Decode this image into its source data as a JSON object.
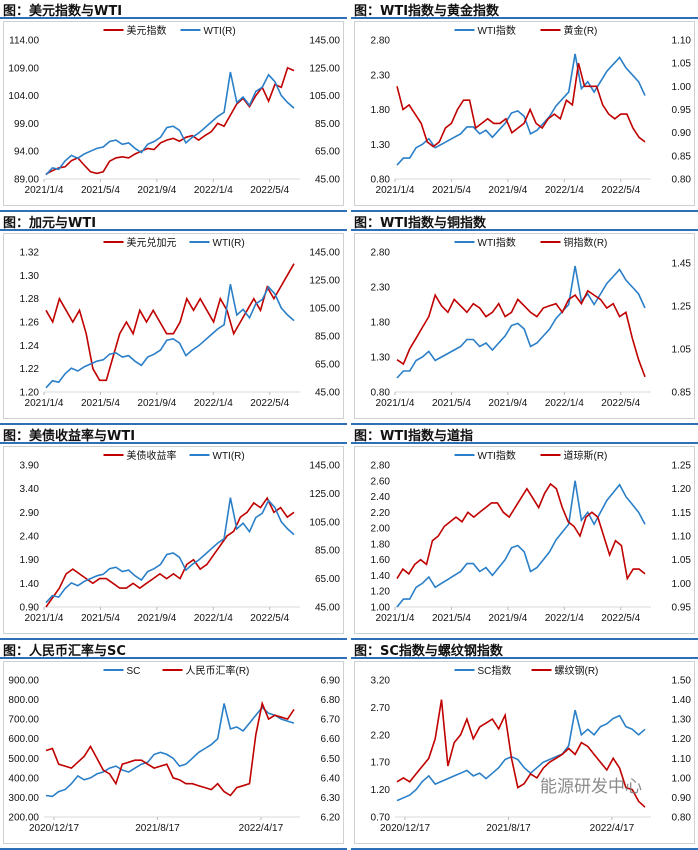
{
  "watermark": "能源研发中心",
  "colors": {
    "red": "#c00000",
    "blue": "#2a7fc8"
  },
  "chart_data": [
    {
      "type": "line",
      "title": "图：美元指数与WTI",
      "legend": [
        "美元指数",
        "WTI(R)"
      ],
      "left_ticks": [
        "89.00",
        "94.00",
        "99.00",
        "104.00",
        "109.00",
        "114.00"
      ],
      "ylim": [
        89,
        114
      ],
      "right_ticks": [
        "45.00",
        "65.00",
        "85.00",
        "105.00",
        "125.00",
        "145.00"
      ],
      "y2lim": [
        45,
        145
      ],
      "x_ticks": [
        "2021/1/4",
        "2021/5/4",
        "2021/9/4",
        "2022/1/4",
        "2022/5/4"
      ],
      "series": [
        {
          "name": "美元指数",
          "axis": "left",
          "color": "red",
          "values": [
            89.9,
            90.5,
            91.0,
            91.2,
            92.3,
            92.8,
            91.5,
            90.3,
            90.0,
            90.3,
            92.2,
            92.8,
            93.0,
            92.8,
            93.5,
            94.0,
            94.5,
            94.3,
            95.5,
            96.0,
            96.3,
            95.8,
            96.5,
            96.8,
            96.0,
            96.8,
            97.5,
            99.0,
            98.5,
            100.5,
            102.5,
            103.5,
            102.0,
            104.0,
            105.5,
            103.0,
            106.0,
            105.5,
            109.0,
            108.5
          ]
        },
        {
          "name": "WTI(R)",
          "axis": "right",
          "color": "blue",
          "values": [
            48,
            53,
            52,
            58,
            62,
            60,
            63,
            65,
            67,
            68,
            72,
            73,
            70,
            71,
            67,
            64,
            70,
            72,
            75,
            82,
            83,
            80,
            71,
            75,
            78,
            82,
            86,
            90,
            93,
            122,
            100,
            104,
            98,
            108,
            111,
            120,
            115,
            105,
            100,
            96
          ]
        }
      ]
    },
    {
      "type": "line",
      "title": "图：WTI指数与黄金指数",
      "legend": [
        "WTI指数",
        "黄金(R)"
      ],
      "left_ticks": [
        "0.80",
        "1.30",
        "1.80",
        "2.30",
        "2.80"
      ],
      "ylim": [
        0.8,
        2.8
      ],
      "right_ticks": [
        "0.80",
        "0.85",
        "0.90",
        "0.95",
        "1.00",
        "1.05",
        "1.10"
      ],
      "y2lim": [
        0.8,
        1.1
      ],
      "x_ticks": [
        "2021/1/4",
        "2021/5/4",
        "2021/9/4",
        "2022/1/4",
        "2022/5/4"
      ],
      "series": [
        {
          "name": "WTI指数",
          "axis": "left",
          "color": "blue",
          "values": [
            1.0,
            1.1,
            1.1,
            1.25,
            1.3,
            1.38,
            1.25,
            1.3,
            1.35,
            1.4,
            1.45,
            1.55,
            1.55,
            1.45,
            1.5,
            1.4,
            1.5,
            1.6,
            1.75,
            1.78,
            1.7,
            1.45,
            1.5,
            1.6,
            1.7,
            1.85,
            1.95,
            2.05,
            2.6,
            2.1,
            2.2,
            2.05,
            2.2,
            2.35,
            2.45,
            2.55,
            2.4,
            2.3,
            2.2,
            2.0
          ]
        },
        {
          "name": "黄金(R)",
          "axis": "right",
          "color": "red",
          "values": [
            1.0,
            0.95,
            0.96,
            0.94,
            0.92,
            0.88,
            0.87,
            0.88,
            0.91,
            0.92,
            0.95,
            0.97,
            0.97,
            0.91,
            0.92,
            0.93,
            0.92,
            0.92,
            0.93,
            0.9,
            0.91,
            0.92,
            0.95,
            0.92,
            0.91,
            0.93,
            0.94,
            0.93,
            0.97,
            0.96,
            1.05,
            1.0,
            1.0,
            1.0,
            0.96,
            0.94,
            0.93,
            0.94,
            0.94,
            0.91,
            0.89,
            0.88
          ]
        }
      ]
    },
    {
      "type": "line",
      "title": "图：加元与WTI",
      "legend": [
        "美元兑加元",
        "WTI(R)"
      ],
      "left_ticks": [
        "1.20",
        "1.22",
        "1.24",
        "1.26",
        "1.28",
        "1.30",
        "1.32"
      ],
      "ylim": [
        1.2,
        1.32
      ],
      "right_ticks": [
        "45.00",
        "65.00",
        "85.00",
        "105.00",
        "125.00",
        "145.00"
      ],
      "y2lim": [
        45,
        145
      ],
      "x_ticks": [
        "2021/1/4",
        "2021/5/4",
        "2021/9/4",
        "2022/1/4",
        "2022/5/4"
      ],
      "series": [
        {
          "name": "美元兑加元",
          "axis": "left",
          "color": "red",
          "values": [
            1.27,
            1.26,
            1.28,
            1.27,
            1.26,
            1.27,
            1.25,
            1.22,
            1.21,
            1.21,
            1.23,
            1.25,
            1.26,
            1.25,
            1.27,
            1.26,
            1.27,
            1.26,
            1.25,
            1.25,
            1.26,
            1.28,
            1.27,
            1.28,
            1.27,
            1.26,
            1.28,
            1.27,
            1.25,
            1.26,
            1.27,
            1.28,
            1.27,
            1.29,
            1.28,
            1.29,
            1.3,
            1.31
          ]
        },
        {
          "name": "WTI(R)",
          "axis": "right",
          "color": "blue",
          "values": [
            48,
            53,
            52,
            58,
            62,
            60,
            63,
            65,
            67,
            68,
            72,
            73,
            70,
            71,
            67,
            64,
            70,
            72,
            75,
            82,
            83,
            80,
            71,
            75,
            78,
            82,
            86,
            90,
            93,
            122,
            100,
            104,
            98,
            108,
            111,
            120,
            115,
            105,
            100,
            96
          ]
        }
      ]
    },
    {
      "type": "line",
      "title": "图：WTI指数与铜指数",
      "legend": [
        "WTI指数",
        "铜指数(R)"
      ],
      "left_ticks": [
        "0.80",
        "1.30",
        "1.80",
        "2.30",
        "2.80"
      ],
      "ylim": [
        0.8,
        2.8
      ],
      "right_ticks": [
        "0.85",
        "1.05",
        "1.25",
        "1.45"
      ],
      "y2lim": [
        0.85,
        1.5
      ],
      "x_ticks": [
        "2021/1/4",
        "2021/5/4",
        "2021/9/4",
        "2022/1/4",
        "2022/5/4"
      ],
      "series": [
        {
          "name": "WTI指数",
          "axis": "left",
          "color": "blue",
          "values": [
            1.0,
            1.1,
            1.1,
            1.25,
            1.3,
            1.38,
            1.25,
            1.3,
            1.35,
            1.4,
            1.45,
            1.55,
            1.55,
            1.45,
            1.5,
            1.4,
            1.5,
            1.6,
            1.75,
            1.78,
            1.7,
            1.45,
            1.5,
            1.6,
            1.7,
            1.85,
            1.95,
            2.05,
            2.6,
            2.1,
            2.2,
            2.05,
            2.2,
            2.35,
            2.45,
            2.55,
            2.4,
            2.3,
            2.2,
            2.0
          ]
        },
        {
          "name": "铜指数(R)",
          "axis": "right",
          "color": "red",
          "values": [
            1.0,
            0.98,
            1.05,
            1.1,
            1.15,
            1.2,
            1.3,
            1.25,
            1.22,
            1.28,
            1.25,
            1.22,
            1.26,
            1.24,
            1.2,
            1.22,
            1.26,
            1.2,
            1.22,
            1.28,
            1.25,
            1.22,
            1.2,
            1.24,
            1.25,
            1.26,
            1.22,
            1.28,
            1.3,
            1.26,
            1.32,
            1.3,
            1.28,
            1.24,
            1.26,
            1.2,
            1.22,
            1.1,
            1.0,
            0.92
          ]
        }
      ]
    },
    {
      "type": "line",
      "title": "图：美债收益率与WTI",
      "legend": [
        "美债收益率",
        "WTI(R)"
      ],
      "left_ticks": [
        "0.90",
        "1.40",
        "1.90",
        "2.40",
        "2.90",
        "3.40",
        "3.90"
      ],
      "ylim": [
        0.9,
        3.9
      ],
      "right_ticks": [
        "45.00",
        "65.00",
        "85.00",
        "105.00",
        "125.00",
        "145.00"
      ],
      "y2lim": [
        45,
        145
      ],
      "x_ticks": [
        "2021/1/4",
        "2021/5/4",
        "2021/9/4",
        "2022/1/4",
        "2022/5/4"
      ],
      "series": [
        {
          "name": "美债收益率",
          "axis": "left",
          "color": "red",
          "values": [
            0.9,
            1.1,
            1.3,
            1.6,
            1.7,
            1.6,
            1.5,
            1.4,
            1.5,
            1.5,
            1.4,
            1.3,
            1.3,
            1.4,
            1.3,
            1.4,
            1.5,
            1.6,
            1.5,
            1.6,
            1.5,
            1.8,
            1.9,
            1.7,
            1.8,
            2.0,
            2.2,
            2.4,
            2.5,
            2.8,
            2.9,
            3.1,
            3.0,
            3.2,
            2.9,
            3.0,
            2.8,
            2.9
          ]
        },
        {
          "name": "WTI(R)",
          "axis": "right",
          "color": "blue",
          "values": [
            48,
            53,
            52,
            58,
            62,
            60,
            63,
            65,
            67,
            68,
            72,
            73,
            70,
            71,
            67,
            64,
            70,
            72,
            75,
            82,
            83,
            80,
            71,
            75,
            78,
            82,
            86,
            90,
            93,
            122,
            100,
            104,
            98,
            108,
            111,
            120,
            115,
            105,
            100,
            96
          ]
        }
      ]
    },
    {
      "type": "line",
      "title": "图：WTI指数与道指",
      "legend": [
        "WTI指数",
        "道琼斯(R)"
      ],
      "left_ticks": [
        "1.00",
        "1.20",
        "1.40",
        "1.60",
        "1.80",
        "2.00",
        "2.20",
        "2.40",
        "2.60",
        "2.80"
      ],
      "ylim": [
        1.0,
        2.8
      ],
      "right_ticks": [
        "0.95",
        "1.00",
        "1.05",
        "1.10",
        "1.15",
        "1.20",
        "1.25"
      ],
      "y2lim": [
        0.95,
        1.25
      ],
      "x_ticks": [
        "2021/1/4",
        "2021/5/4",
        "2021/9/4",
        "2022/1/4",
        "2022/5/4"
      ],
      "series": [
        {
          "name": "WTI指数",
          "axis": "left",
          "color": "blue",
          "values": [
            1.0,
            1.1,
            1.1,
            1.25,
            1.3,
            1.38,
            1.25,
            1.3,
            1.35,
            1.4,
            1.45,
            1.55,
            1.55,
            1.45,
            1.5,
            1.4,
            1.5,
            1.6,
            1.75,
            1.78,
            1.7,
            1.45,
            1.5,
            1.6,
            1.7,
            1.85,
            1.95,
            2.05,
            2.6,
            2.1,
            2.2,
            2.05,
            2.2,
            2.35,
            2.45,
            2.55,
            2.4,
            2.3,
            2.2,
            2.05
          ]
        },
        {
          "name": "道琼斯(R)",
          "axis": "right",
          "color": "red",
          "values": [
            1.01,
            1.03,
            1.02,
            1.04,
            1.05,
            1.04,
            1.09,
            1.1,
            1.12,
            1.13,
            1.14,
            1.13,
            1.15,
            1.14,
            1.15,
            1.16,
            1.17,
            1.17,
            1.15,
            1.14,
            1.16,
            1.18,
            1.2,
            1.18,
            1.16,
            1.19,
            1.21,
            1.2,
            1.16,
            1.13,
            1.12,
            1.1,
            1.14,
            1.15,
            1.14,
            1.1,
            1.06,
            1.09,
            1.08,
            1.01,
            1.03,
            1.03,
            1.02
          ]
        }
      ]
    },
    {
      "type": "line",
      "title": "图：人民币汇率与SC",
      "legend": [
        "SC",
        "人民币汇率(R)"
      ],
      "left_ticks": [
        "200.00",
        "300.00",
        "400.00",
        "500.00",
        "600.00",
        "700.00",
        "800.00",
        "900.00"
      ],
      "ylim": [
        200,
        900
      ],
      "right_ticks": [
        "6.20",
        "6.30",
        "6.40",
        "6.50",
        "6.60",
        "6.70",
        "6.80",
        "6.90"
      ],
      "y2lim": [
        6.2,
        6.9
      ],
      "x_ticks": [
        "2020/12/17",
        "2021/8/17",
        "2022/4/17"
      ],
      "series": [
        {
          "name": "SC",
          "axis": "left",
          "color": "blue",
          "values": [
            310,
            305,
            330,
            340,
            370,
            410,
            390,
            400,
            420,
            430,
            450,
            460,
            440,
            430,
            450,
            470,
            480,
            520,
            530,
            520,
            500,
            460,
            470,
            500,
            530,
            550,
            570,
            600,
            780,
            650,
            660,
            640,
            680,
            720,
            760,
            730,
            720,
            700,
            690,
            680
          ]
        },
        {
          "name": "人民币汇率(R)",
          "axis": "right",
          "color": "red",
          "values": [
            6.54,
            6.55,
            6.47,
            6.46,
            6.45,
            6.48,
            6.51,
            6.56,
            6.5,
            6.44,
            6.42,
            6.37,
            6.47,
            6.48,
            6.49,
            6.49,
            6.47,
            6.45,
            6.46,
            6.47,
            6.4,
            6.39,
            6.37,
            6.37,
            6.36,
            6.35,
            6.34,
            6.37,
            6.33,
            6.31,
            6.35,
            6.36,
            6.37,
            6.62,
            6.78,
            6.7,
            6.72,
            6.71,
            6.7,
            6.75
          ]
        }
      ]
    },
    {
      "type": "line",
      "title": "图：SC指数与螺纹钢指数",
      "legend": [
        "SC指数",
        "螺纹钢(R)"
      ],
      "left_ticks": [
        "0.70",
        "1.20",
        "1.70",
        "2.20",
        "2.70",
        "3.20"
      ],
      "ylim": [
        0.7,
        3.2
      ],
      "right_ticks": [
        "0.80",
        "0.90",
        "1.00",
        "1.10",
        "1.20",
        "1.30",
        "1.40",
        "1.50"
      ],
      "y2lim": [
        0.8,
        1.5
      ],
      "x_ticks": [
        "2020/12/17",
        "2021/8/17",
        "2022/4/17"
      ],
      "series": [
        {
          "name": "SC指数",
          "axis": "left",
          "color": "blue",
          "values": [
            1.0,
            1.05,
            1.1,
            1.2,
            1.35,
            1.45,
            1.3,
            1.35,
            1.4,
            1.45,
            1.5,
            1.55,
            1.45,
            1.5,
            1.4,
            1.5,
            1.6,
            1.75,
            1.8,
            1.75,
            1.6,
            1.5,
            1.6,
            1.7,
            1.75,
            1.8,
            1.85,
            2.0,
            2.65,
            2.2,
            2.3,
            2.2,
            2.35,
            2.4,
            2.5,
            2.55,
            2.35,
            2.3,
            2.2,
            2.3
          ]
        },
        {
          "name": "螺纹钢(R)",
          "axis": "right",
          "color": "red",
          "values": [
            0.98,
            1.0,
            0.98,
            1.02,
            1.06,
            1.1,
            1.2,
            1.4,
            1.06,
            1.18,
            1.22,
            1.3,
            1.2,
            1.26,
            1.28,
            1.3,
            1.25,
            1.32,
            1.1,
            0.95,
            0.97,
            1.02,
            1.0,
            1.05,
            1.08,
            1.1,
            1.12,
            1.15,
            1.12,
            1.18,
            1.16,
            1.12,
            1.08,
            1.04,
            1.1,
            1.05,
            0.95,
            0.94,
            0.88,
            0.85
          ]
        }
      ]
    }
  ]
}
